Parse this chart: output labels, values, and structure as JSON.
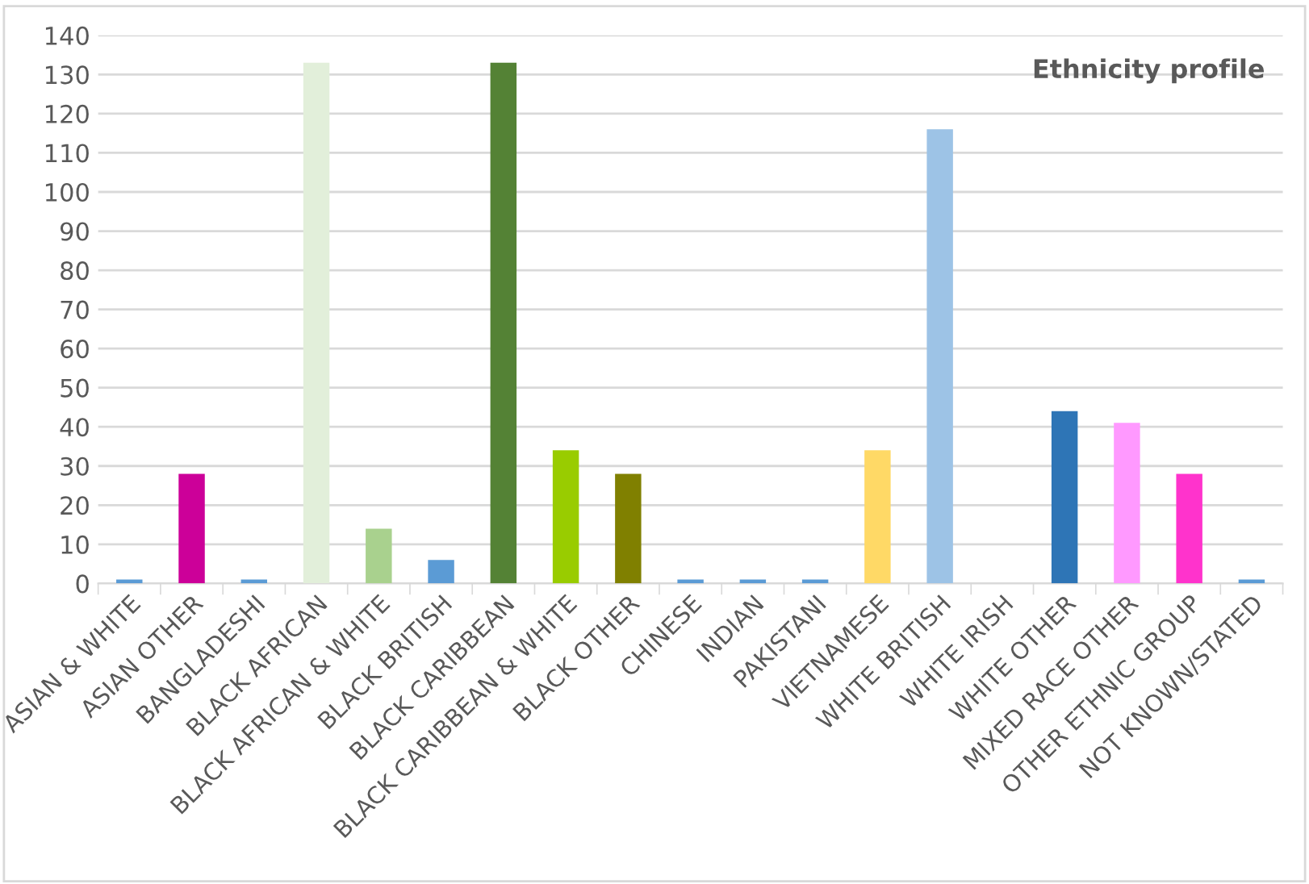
{
  "chart_data": {
    "type": "bar",
    "title": "Ethnicity profile",
    "categories": [
      "ASIAN & WHITE",
      "ASIAN OTHER",
      "BANGLADESHI",
      "BLACK AFRICAN",
      "BLACK AFRICAN & WHITE",
      "BLACK BRITISH",
      "BLACK CARIBBEAN",
      "BLACK CARIBBEAN & WHITE",
      "BLACK OTHER",
      "CHINESE",
      "INDIAN",
      "PAKISTANI",
      "VIETNAMESE",
      "WHITE BRITISH",
      "WHITE IRISH",
      "WHITE OTHER",
      "MIXED RACE OTHER",
      "OTHER ETHNIC GROUP",
      "NOT KNOWN/STATED"
    ],
    "values": [
      1,
      28,
      1,
      133,
      14,
      6,
      133,
      34,
      28,
      1,
      1,
      1,
      34,
      116,
      0,
      44,
      41,
      28,
      1
    ],
    "colors": [
      "#5b9bd5",
      "#cc0099",
      "#5b9bd5",
      "#e2efda",
      "#a9d18e",
      "#5b9bd5",
      "#548235",
      "#99cc00",
      "#808000",
      "#5b9bd5",
      "#5b9bd5",
      "#5b9bd5",
      "#ffd966",
      "#9dc3e6",
      "#5b9bd5",
      "#2e75b6",
      "#ff99ff",
      "#ff33cc",
      "#5b9bd5"
    ],
    "ylim": [
      0,
      140
    ],
    "yticks": [
      0,
      10,
      20,
      30,
      40,
      50,
      60,
      70,
      80,
      90,
      100,
      110,
      120,
      130,
      140
    ],
    "grid": "y"
  }
}
